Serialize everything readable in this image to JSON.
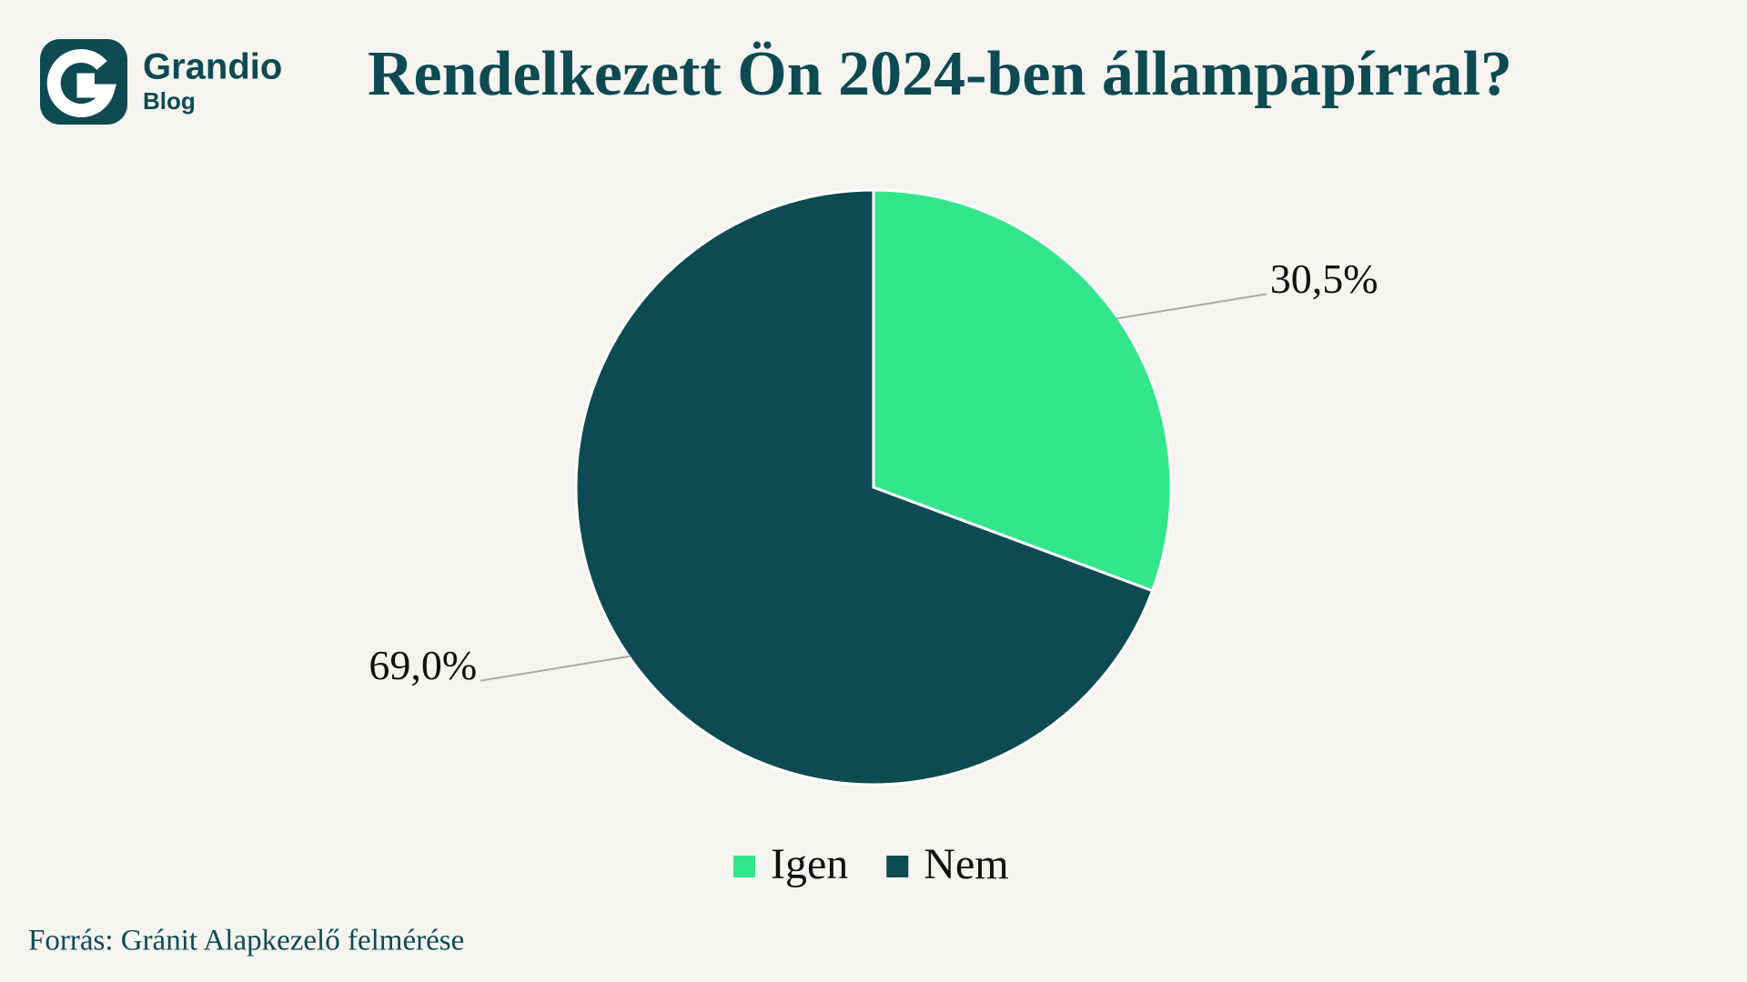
{
  "brand": {
    "name": "Grandio",
    "sub": "Blog"
  },
  "chart_data": {
    "type": "pie",
    "title": "Rendelkezett Ön 2024-ben állampapírral?",
    "categories": [
      "Igen",
      "Nem"
    ],
    "values": [
      30.5,
      69.0
    ],
    "value_labels": [
      "30,5%",
      "69,0%"
    ],
    "colors": [
      "#33e68c",
      "#0d4a52"
    ],
    "source": "Forrás: Gránit Alapkezelő felmérése"
  }
}
